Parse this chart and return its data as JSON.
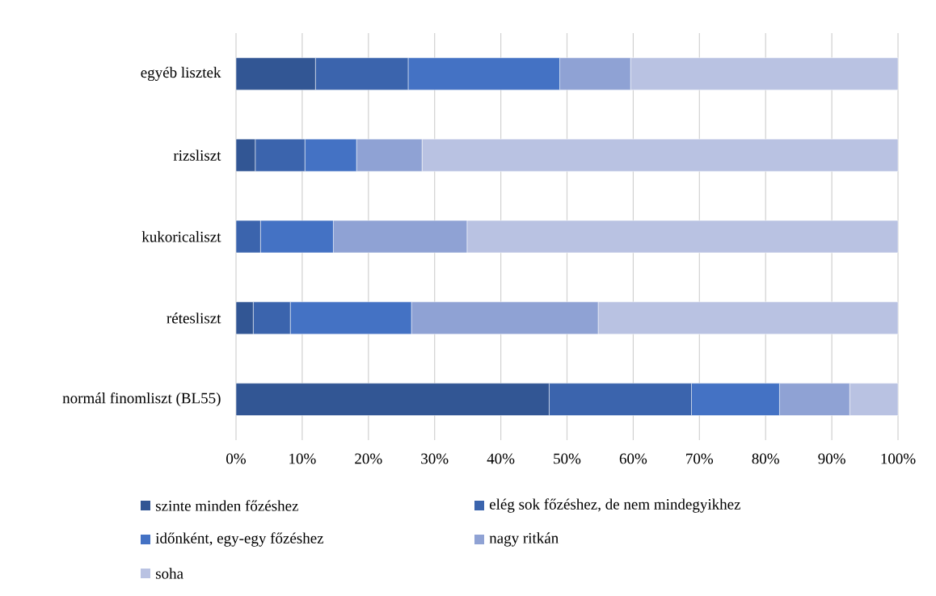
{
  "chart_data": {
    "type": "bar",
    "orientation": "horizontal",
    "stacked": true,
    "categories": [
      "egyéb lisztek",
      "rizsliszt",
      "kukoricaliszt",
      "rétesliszt",
      "normál finomliszt (BL55)"
    ],
    "series": [
      {
        "name": "szinte minden főzéshez",
        "color": "#325694",
        "values": [
          12.0,
          2.9,
          0,
          2.6,
          47.3
        ]
      },
      {
        "name": "elég sok főzéshez, de nem mindegyikhez",
        "color": "#3b64ad",
        "values": [
          14.0,
          7.5,
          3.7,
          5.6,
          21.5
        ]
      },
      {
        "name": "időnként, egy-egy főzéshez",
        "color": "#4472c4",
        "values": [
          22.9,
          7.8,
          11.0,
          18.3,
          13.3
        ]
      },
      {
        "name": "nagy ritkán",
        "color": "#8fa2d4",
        "values": [
          10.7,
          9.9,
          20.2,
          28.2,
          10.6
        ]
      },
      {
        "name": "soha",
        "color": "#b9c2e2",
        "values": [
          40.4,
          71.9,
          65.1,
          45.3,
          7.3
        ]
      }
    ],
    "xlim": [
      0,
      100
    ],
    "xticks": [
      {
        "value": 0,
        "label": "0%"
      },
      {
        "value": 10,
        "label": "10%"
      },
      {
        "value": 20,
        "label": "20%"
      },
      {
        "value": 30,
        "label": "30%"
      },
      {
        "value": 40,
        "label": "40%"
      },
      {
        "value": 50,
        "label": "50%"
      },
      {
        "value": 60,
        "label": "60%"
      },
      {
        "value": 70,
        "label": "70%"
      },
      {
        "value": 80,
        "label": "80%"
      },
      {
        "value": 90,
        "label": "90%"
      },
      {
        "value": 100,
        "label": "100%"
      }
    ],
    "grid": "x",
    "legend": "bottom"
  }
}
